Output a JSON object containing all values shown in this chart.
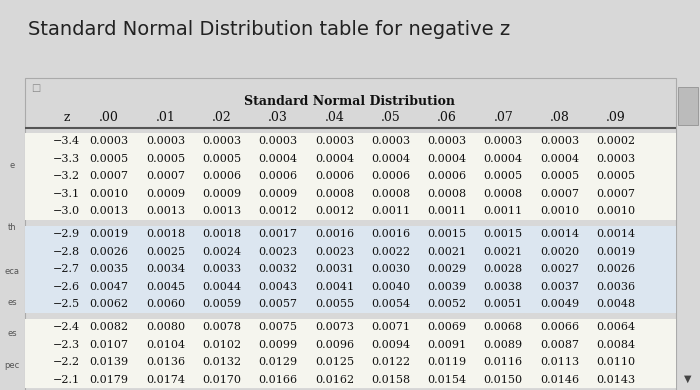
{
  "title": "Standard Normal Distribution table for negative z",
  "subtitle": "Standard Normal Distribution",
  "columns": [
    "z",
    ".00",
    ".01",
    ".02",
    ".03",
    ".04",
    ".05",
    ".06",
    ".07",
    ".08",
    ".09"
  ],
  "groups": [
    {
      "bg": "#f5f5ee",
      "rows": [
        [
          "−3.4",
          "0.0003",
          "0.0003",
          "0.0003",
          "0.0003",
          "0.0003",
          "0.0003",
          "0.0003",
          "0.0003",
          "0.0003",
          "0.0002"
        ],
        [
          "−3.3",
          "0.0005",
          "0.0005",
          "0.0005",
          "0.0004",
          "0.0004",
          "0.0004",
          "0.0004",
          "0.0004",
          "0.0004",
          "0.0003"
        ],
        [
          "−3.2",
          "0.0007",
          "0.0007",
          "0.0006",
          "0.0006",
          "0.0006",
          "0.0006",
          "0.0006",
          "0.0005",
          "0.0005",
          "0.0005"
        ],
        [
          "−3.1",
          "0.0010",
          "0.0009",
          "0.0009",
          "0.0009",
          "0.0008",
          "0.0008",
          "0.0008",
          "0.0008",
          "0.0007",
          "0.0007"
        ],
        [
          "−3.0",
          "0.0013",
          "0.0013",
          "0.0013",
          "0.0012",
          "0.0012",
          "0.0011",
          "0.0011",
          "0.0011",
          "0.0010",
          "0.0010"
        ]
      ]
    },
    {
      "bg": "#dce6f0",
      "rows": [
        [
          "−2.9",
          "0.0019",
          "0.0018",
          "0.0018",
          "0.0017",
          "0.0016",
          "0.0016",
          "0.0015",
          "0.0015",
          "0.0014",
          "0.0014"
        ],
        [
          "−2.8",
          "0.0026",
          "0.0025",
          "0.0024",
          "0.0023",
          "0.0023",
          "0.0022",
          "0.0021",
          "0.0021",
          "0.0020",
          "0.0019"
        ],
        [
          "−2.7",
          "0.0035",
          "0.0034",
          "0.0033",
          "0.0032",
          "0.0031",
          "0.0030",
          "0.0029",
          "0.0028",
          "0.0027",
          "0.0026"
        ],
        [
          "−2.6",
          "0.0047",
          "0.0045",
          "0.0044",
          "0.0043",
          "0.0041",
          "0.0040",
          "0.0039",
          "0.0038",
          "0.0037",
          "0.0036"
        ],
        [
          "−2.5",
          "0.0062",
          "0.0060",
          "0.0059",
          "0.0057",
          "0.0055",
          "0.0054",
          "0.0052",
          "0.0051",
          "0.0049",
          "0.0048"
        ]
      ]
    },
    {
      "bg": "#f5f5ee",
      "rows": [
        [
          "−2.4",
          "0.0082",
          "0.0080",
          "0.0078",
          "0.0075",
          "0.0073",
          "0.0071",
          "0.0069",
          "0.0068",
          "0.0066",
          "0.0064"
        ],
        [
          "−2.3",
          "0.0107",
          "0.0104",
          "0.0102",
          "0.0099",
          "0.0096",
          "0.0094",
          "0.0091",
          "0.0089",
          "0.0087",
          "0.0084"
        ],
        [
          "−2.2",
          "0.0139",
          "0.0136",
          "0.0132",
          "0.0129",
          "0.0125",
          "0.0122",
          "0.0119",
          "0.0116",
          "0.0113",
          "0.0110"
        ],
        [
          "−2.1",
          "0.0179",
          "0.0174",
          "0.0170",
          "0.0166",
          "0.0162",
          "0.0158",
          "0.0154",
          "0.0150",
          "0.0146",
          "0.0143"
        ]
      ]
    }
  ],
  "page_bg": "#d8d8d8",
  "table_bg": "#f5f5ee",
  "table_border": "#aaaaaa",
  "title_color": "#222222",
  "text_color": "#111111",
  "header_line_color": "#555555",
  "title_fontsize": 14,
  "subtitle_fontsize": 9,
  "header_fontsize": 9,
  "data_fontsize": 8
}
